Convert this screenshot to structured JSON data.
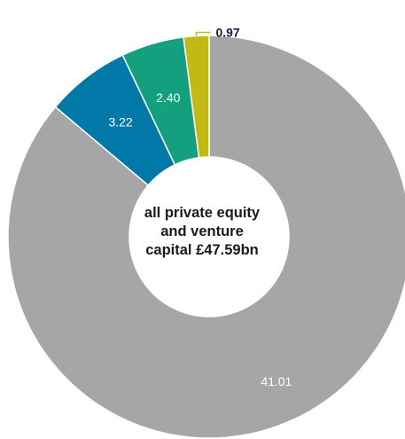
{
  "chart_data": {
    "type": "pie",
    "subtype": "donut",
    "center_label": [
      "all private equity",
      "and venture",
      "capital £47.59bn"
    ],
    "slices": [
      {
        "value": 41.01,
        "label": "41.01",
        "color": "#a6a6a6",
        "label_color": "#ffffff",
        "label_position": "inside"
      },
      {
        "value": 3.22,
        "label": "3.22",
        "color": "#0078a8",
        "label_color": "#ffffff",
        "label_position": "inside"
      },
      {
        "value": 2.4,
        "label": "2.40",
        "color": "#14a07e",
        "label_color": "#ffffff",
        "label_position": "inside"
      },
      {
        "value": 0.97,
        "label": "0.97",
        "color": "#c2b914",
        "label_color": "#1a1a3e",
        "label_position": "outside-callout"
      }
    ],
    "direction": "clockwise-from-top"
  }
}
